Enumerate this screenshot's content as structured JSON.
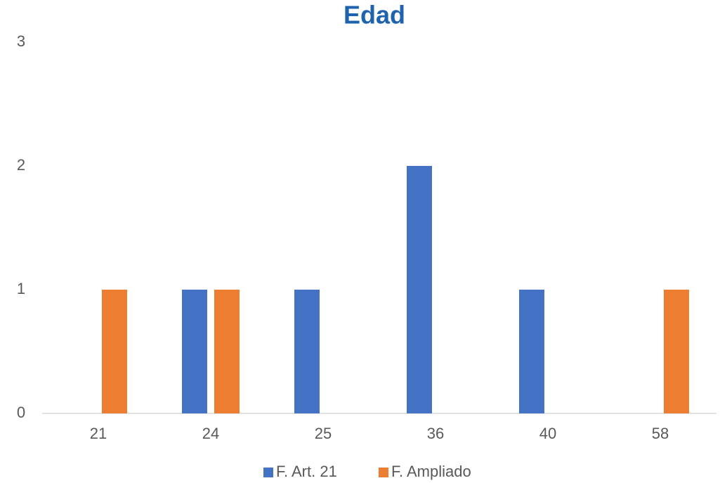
{
  "chart_data": {
    "type": "bar",
    "title": "Edad",
    "categories": [
      "21",
      "24",
      "25",
      "36",
      "40",
      "58"
    ],
    "series": [
      {
        "name": "F. Art. 21",
        "color": "#4472c4",
        "values": [
          null,
          1,
          1,
          2,
          1,
          null
        ]
      },
      {
        "name": "F. Ampliado",
        "color": "#ed7d31",
        "values": [
          1,
          1,
          null,
          null,
          null,
          1
        ]
      }
    ],
    "ylim": [
      0,
      3
    ],
    "yticks": [
      0,
      1,
      2,
      3
    ],
    "grid": false,
    "legend": "bottom"
  }
}
